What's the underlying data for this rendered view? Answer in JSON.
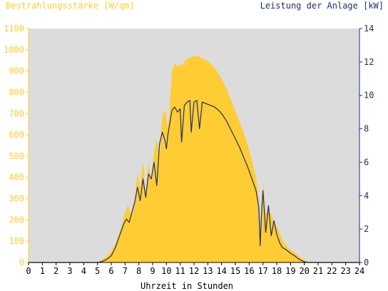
{
  "chart_data": {
    "type": "area",
    "left_title": "Bestrahlungsstärke [W/qm]",
    "right_title": "Leistung der Anlage [kW]",
    "xlabel": "Uhrzeit in Stunden",
    "xlim": [
      0,
      24
    ],
    "xticks": [
      "0",
      "1",
      "2",
      "3",
      "4",
      "5",
      "6",
      "7",
      "8",
      "9",
      "10",
      "11",
      "12",
      "13",
      "14",
      "15",
      "16",
      "17",
      "18",
      "19",
      "20",
      "21",
      "22",
      "23",
      "24"
    ],
    "ylim_left": [
      0,
      1100
    ],
    "yticks_left": [
      "0",
      "100",
      "200",
      "300",
      "400",
      "500",
      "600",
      "700",
      "800",
      "900",
      "1000",
      "1100"
    ],
    "ylim_right": [
      0,
      14
    ],
    "yticks_right": [
      "0",
      "2",
      "4",
      "6",
      "8",
      "10",
      "12",
      "14"
    ],
    "colors": {
      "irradiance": "#ffcc33",
      "power": "#1f2f6f",
      "left_axis": "#ffcc33",
      "right_axis": "#1f2f6f",
      "plot_bg": "#dcdcdc"
    },
    "series": [
      {
        "axis": "left",
        "style": "area",
        "points": [
          [
            0,
            0
          ],
          [
            5.0,
            0
          ],
          [
            5.2,
            8
          ],
          [
            5.6,
            25
          ],
          [
            6.0,
            50
          ],
          [
            6.3,
            90
          ],
          [
            6.6,
            140
          ],
          [
            6.9,
            210
          ],
          [
            7.2,
            270
          ],
          [
            7.5,
            220
          ],
          [
            7.7,
            300
          ],
          [
            7.9,
            420
          ],
          [
            8.1,
            350
          ],
          [
            8.3,
            480
          ],
          [
            8.5,
            320
          ],
          [
            8.7,
            470
          ],
          [
            8.9,
            380
          ],
          [
            9.1,
            520
          ],
          [
            9.3,
            580
          ],
          [
            9.5,
            500
          ],
          [
            9.7,
            680
          ],
          [
            9.9,
            720
          ],
          [
            10.1,
            630
          ],
          [
            10.2,
            690
          ],
          [
            10.3,
            790
          ],
          [
            10.4,
            900
          ],
          [
            10.5,
            910
          ],
          [
            10.6,
            940
          ],
          [
            10.8,
            920
          ],
          [
            11.0,
            930
          ],
          [
            11.2,
            930
          ],
          [
            11.4,
            950
          ],
          [
            11.6,
            960
          ],
          [
            11.8,
            965
          ],
          [
            12.0,
            970
          ],
          [
            12.3,
            970
          ],
          [
            12.6,
            960
          ],
          [
            12.9,
            950
          ],
          [
            13.2,
            935
          ],
          [
            13.5,
            915
          ],
          [
            13.8,
            885
          ],
          [
            14.1,
            850
          ],
          [
            14.4,
            810
          ],
          [
            14.7,
            760
          ],
          [
            15.0,
            710
          ],
          [
            15.3,
            660
          ],
          [
            15.6,
            610
          ],
          [
            15.9,
            550
          ],
          [
            16.2,
            480
          ],
          [
            16.5,
            400
          ],
          [
            16.7,
            300
          ],
          [
            16.85,
            100
          ],
          [
            16.95,
            250
          ],
          [
            17.05,
            380
          ],
          [
            17.2,
            230
          ],
          [
            17.4,
            240
          ],
          [
            17.6,
            230
          ],
          [
            17.8,
            190
          ],
          [
            18.0,
            170
          ],
          [
            18.2,
            140
          ],
          [
            18.5,
            95
          ],
          [
            18.8,
            70
          ],
          [
            19.1,
            55
          ],
          [
            19.4,
            40
          ],
          [
            19.7,
            25
          ],
          [
            20.0,
            12
          ],
          [
            20.3,
            3
          ],
          [
            20.5,
            0
          ],
          [
            24,
            0
          ]
        ]
      },
      {
        "axis": "right",
        "style": "line",
        "points": [
          [
            0,
            0
          ],
          [
            5.0,
            0
          ],
          [
            5.3,
            0.05
          ],
          [
            5.6,
            0.15
          ],
          [
            6.0,
            0.4
          ],
          [
            6.3,
            0.9
          ],
          [
            6.6,
            1.6
          ],
          [
            6.9,
            2.3
          ],
          [
            7.1,
            2.6
          ],
          [
            7.3,
            2.4
          ],
          [
            7.5,
            3.0
          ],
          [
            7.7,
            3.6
          ],
          [
            7.9,
            4.5
          ],
          [
            8.1,
            3.7
          ],
          [
            8.3,
            5.0
          ],
          [
            8.5,
            3.9
          ],
          [
            8.7,
            5.3
          ],
          [
            8.9,
            5.0
          ],
          [
            9.1,
            6.0
          ],
          [
            9.3,
            4.6
          ],
          [
            9.5,
            7.1
          ],
          [
            9.7,
            7.8
          ],
          [
            9.9,
            7.3
          ],
          [
            10.0,
            6.8
          ],
          [
            10.1,
            7.6
          ],
          [
            10.2,
            8.1
          ],
          [
            10.3,
            8.6
          ],
          [
            10.4,
            9.1
          ],
          [
            10.6,
            9.3
          ],
          [
            10.8,
            9.0
          ],
          [
            11.0,
            9.2
          ],
          [
            11.1,
            7.2
          ],
          [
            11.3,
            9.4
          ],
          [
            11.5,
            9.6
          ],
          [
            11.7,
            9.7
          ],
          [
            11.8,
            7.8
          ],
          [
            12.0,
            9.6
          ],
          [
            12.2,
            9.7
          ],
          [
            12.4,
            8.0
          ],
          [
            12.6,
            9.6
          ],
          [
            12.9,
            9.5
          ],
          [
            13.2,
            9.4
          ],
          [
            13.5,
            9.3
          ],
          [
            13.8,
            9.1
          ],
          [
            14.1,
            8.8
          ],
          [
            14.4,
            8.4
          ],
          [
            14.7,
            7.9
          ],
          [
            15.0,
            7.4
          ],
          [
            15.3,
            6.9
          ],
          [
            15.6,
            6.3
          ],
          [
            15.9,
            5.7
          ],
          [
            16.2,
            5.0
          ],
          [
            16.5,
            4.3
          ],
          [
            16.7,
            3.3
          ],
          [
            16.8,
            1.0
          ],
          [
            16.9,
            3.0
          ],
          [
            17.0,
            4.3
          ],
          [
            17.1,
            3.1
          ],
          [
            17.2,
            1.8
          ],
          [
            17.4,
            3.4
          ],
          [
            17.6,
            1.6
          ],
          [
            17.8,
            2.5
          ],
          [
            18.0,
            1.7
          ],
          [
            18.2,
            1.2
          ],
          [
            18.4,
            0.9
          ],
          [
            18.7,
            0.75
          ],
          [
            19.0,
            0.55
          ],
          [
            19.3,
            0.4
          ],
          [
            19.6,
            0.2
          ],
          [
            19.9,
            0.08
          ],
          [
            20.1,
            0.02
          ],
          [
            20.3,
            0
          ],
          [
            24,
            0
          ]
        ]
      }
    ]
  }
}
